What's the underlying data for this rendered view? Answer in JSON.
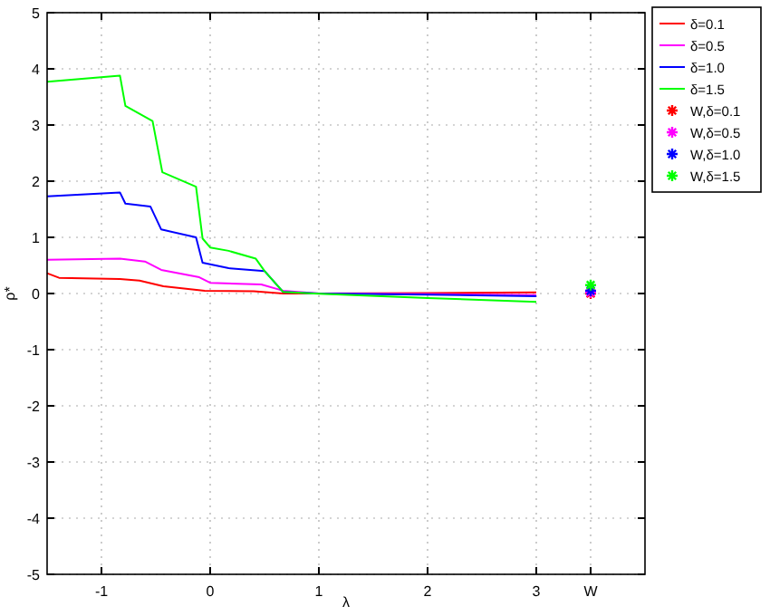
{
  "chart_data": {
    "type": "line",
    "xlabel": "λ",
    "ylabel": "ρ*",
    "xlim": [
      -1.5,
      4
    ],
    "ylim": [
      -5,
      5
    ],
    "xticks": [
      -1,
      0,
      1,
      2,
      3,
      {
        "value": 3.5,
        "label": "W"
      }
    ],
    "yticks": [
      -5,
      -4,
      -3,
      -2,
      -1,
      0,
      1,
      2,
      3,
      4,
      5
    ],
    "grid": true,
    "legend": "top right",
    "marker": "none",
    "line_style": "solid",
    "series": [
      {
        "name": "δ=0.1",
        "color": "#ff0000",
        "x": [
          -1.5,
          -1.39,
          -0.83,
          -0.65,
          -0.43,
          -0.05,
          0.4,
          0.67,
          1.0,
          2.0,
          3.0
        ],
        "values": [
          0.36,
          0.28,
          0.26,
          0.23,
          0.13,
          0.05,
          0.04,
          0,
          0,
          0.01,
          0.02
        ]
      },
      {
        "name": "δ=0.5",
        "color": "#ff00ff",
        "x": [
          -1.5,
          -0.83,
          -0.6,
          -0.45,
          -0.1,
          0,
          0.47,
          0.67,
          1.0,
          2.0,
          3.0
        ],
        "values": [
          0.6,
          0.62,
          0.57,
          0.42,
          0.29,
          0.19,
          0.16,
          0.05,
          0,
          -0.01,
          -0.03
        ]
      },
      {
        "name": "δ=1.0",
        "color": "#0000ff",
        "x": [
          -1.5,
          -0.83,
          -0.78,
          -0.55,
          -0.45,
          -0.13,
          -0.07,
          0.17,
          0.5,
          0.67,
          1.0,
          2.0,
          3.0
        ],
        "values": [
          1.73,
          1.8,
          1.6,
          1.55,
          1.14,
          1.0,
          0.55,
          0.45,
          0.4,
          0.03,
          0,
          -0.02,
          -0.05
        ]
      },
      {
        "name": "δ=1.5",
        "color": "#00ff00",
        "x": [
          -1.5,
          -0.83,
          -0.78,
          -0.53,
          -0.44,
          -0.13,
          -0.07,
          0,
          0.17,
          0.42,
          0.5,
          0.67,
          0.95,
          2.0,
          3.0
        ],
        "values": [
          3.77,
          3.88,
          3.34,
          3.07,
          2.16,
          1.9,
          0.98,
          0.82,
          0.76,
          0.62,
          0.4,
          0.03,
          0,
          -0.08,
          -0.15
        ]
      },
      {
        "name": "W,δ=0.1",
        "type": "scatter",
        "marker": "cross",
        "color": "#ff0000",
        "x": [
          3.5
        ],
        "values": [
          0
        ]
      },
      {
        "name": "W,δ=0.5",
        "type": "scatter",
        "marker": "cross",
        "color": "#ff00ff",
        "x": [
          3.5
        ],
        "values": [
          0.02
        ]
      },
      {
        "name": "W,δ=1.0",
        "type": "scatter",
        "marker": "cross",
        "color": "#0000ff",
        "x": [
          3.5
        ],
        "values": [
          0.05
        ]
      },
      {
        "name": "W,δ=1.5",
        "type": "scatter",
        "marker": "cross",
        "color": "#00ff00",
        "x": [
          3.5
        ],
        "values": [
          0.15
        ]
      }
    ]
  }
}
